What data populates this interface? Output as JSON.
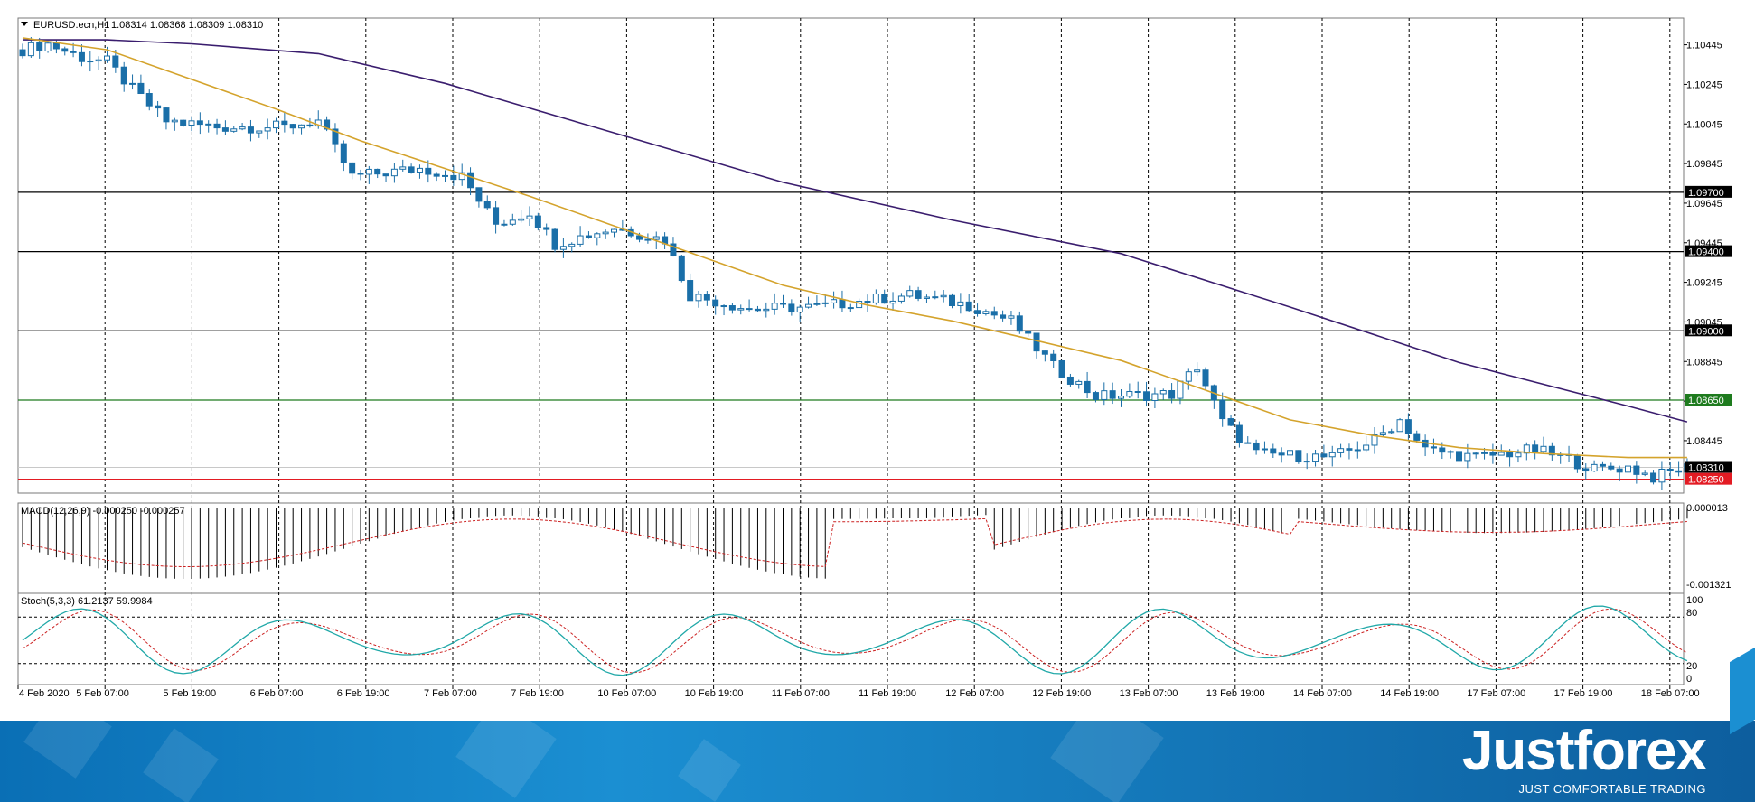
{
  "header": {
    "symbol": "EURUSD.ecn,H1",
    "ohlc": "1.08314 1.08368 1.08309 1.08310"
  },
  "price_axis": {
    "ticks": [
      "1.10445",
      "1.10245",
      "1.10045",
      "1.09845",
      "1.09645",
      "1.09445",
      "1.09245",
      "1.09045",
      "1.08845",
      "1.08645",
      "1.08445"
    ]
  },
  "levels": [
    {
      "label": "1.09700",
      "value": 1.097,
      "color": "#000000"
    },
    {
      "label": "1.09400",
      "value": 1.094,
      "color": "#000000"
    },
    {
      "label": "1.09000",
      "value": 1.09,
      "color": "#000000"
    },
    {
      "label": "1.08650",
      "value": 1.0865,
      "color": "#1e7b1e"
    },
    {
      "label": "1.08310",
      "value": 1.0831,
      "color": "#000000"
    },
    {
      "label": "1.08250",
      "value": 1.0825,
      "color": "#e31b23"
    }
  ],
  "macd": {
    "label": "MACD(12,26,9) -0.000250 -0.000257",
    "axis_labels": [
      "0.000013",
      "-0.001321"
    ]
  },
  "stoch": {
    "label": "Stoch(5,3,3) 61.2137 59.9984",
    "axis_labels": [
      "100",
      "80",
      "20",
      "0"
    ]
  },
  "time_axis": [
    "4 Feb 2020",
    "5 Feb 07:00",
    "5 Feb 19:00",
    "6 Feb 07:00",
    "6 Feb 19:00",
    "7 Feb 07:00",
    "7 Feb 19:00",
    "10 Feb 07:00",
    "10 Feb 19:00",
    "11 Feb 07:00",
    "11 Feb 19:00",
    "12 Feb 07:00",
    "12 Feb 19:00",
    "13 Feb 07:00",
    "13 Feb 19:00",
    "14 Feb 07:00",
    "14 Feb 19:00",
    "17 Feb 07:00",
    "17 Feb 19:00",
    "18 Feb 07:00"
  ],
  "brand": {
    "name": "Justforex",
    "tagline": "JUST COMFORTABLE TRADING"
  },
  "colors": {
    "bull": "#ffffff",
    "bear": "#1a6fa8",
    "ma_fast": "#d4a32c",
    "ma_slow": "#3a1d6e",
    "macd_signal": "#cc2222",
    "stoch_main": "#20a8a8",
    "stoch_signal": "#cc2222"
  },
  "chart_data": {
    "type": "candlestick",
    "instrument": "EURUSD.ecn",
    "timeframe": "H1",
    "y_range": [
      1.0818,
      1.1058
    ],
    "close_path": [
      {
        "t": 0,
        "v": 1.1042
      },
      {
        "t": 3,
        "v": 1.1045
      },
      {
        "t": 7,
        "v": 1.1038
      },
      {
        "t": 10,
        "v": 1.1036
      },
      {
        "t": 13,
        "v": 1.1022
      },
      {
        "t": 17,
        "v": 1.1006
      },
      {
        "t": 23,
        "v": 1.1003
      },
      {
        "t": 31,
        "v": 1.1003
      },
      {
        "t": 35,
        "v": 1.1006
      },
      {
        "t": 39,
        "v": 1.0978
      },
      {
        "t": 47,
        "v": 1.0982
      },
      {
        "t": 52,
        "v": 1.0978
      },
      {
        "t": 56,
        "v": 1.0954
      },
      {
        "t": 60,
        "v": 1.096
      },
      {
        "t": 63,
        "v": 1.0944
      },
      {
        "t": 70,
        "v": 1.0952
      },
      {
        "t": 76,
        "v": 1.0946
      },
      {
        "t": 79,
        "v": 1.0918
      },
      {
        "t": 86,
        "v": 1.0911
      },
      {
        "t": 94,
        "v": 1.0912
      },
      {
        "t": 99,
        "v": 1.0915
      },
      {
        "t": 105,
        "v": 1.0918
      },
      {
        "t": 112,
        "v": 1.0913
      },
      {
        "t": 117,
        "v": 1.0905
      },
      {
        "t": 122,
        "v": 1.0882
      },
      {
        "t": 127,
        "v": 1.0867
      },
      {
        "t": 136,
        "v": 1.0868
      },
      {
        "t": 139,
        "v": 1.0882
      },
      {
        "t": 142,
        "v": 1.0854
      },
      {
        "t": 146,
        "v": 1.0838
      },
      {
        "t": 155,
        "v": 1.0836
      },
      {
        "t": 160,
        "v": 1.0845
      },
      {
        "t": 163,
        "v": 1.0855
      },
      {
        "t": 166,
        "v": 1.084
      },
      {
        "t": 172,
        "v": 1.0836
      },
      {
        "t": 179,
        "v": 1.084
      },
      {
        "t": 183,
        "v": 1.0835
      },
      {
        "t": 186,
        "v": 1.083
      },
      {
        "t": 190,
        "v": 1.0831
      },
      {
        "t": 193,
        "v": 1.0826
      },
      {
        "t": 197,
        "v": 1.0831
      }
    ],
    "ma_fast": [
      [
        0,
        1.1048
      ],
      [
        10,
        1.1042
      ],
      [
        20,
        1.1027
      ],
      [
        30,
        1.1012
      ],
      [
        40,
        1.0996
      ],
      [
        50,
        1.0982
      ],
      [
        60,
        1.0968
      ],
      [
        70,
        1.0953
      ],
      [
        80,
        1.0938
      ],
      [
        90,
        1.0923
      ],
      [
        100,
        1.0913
      ],
      [
        110,
        1.0905
      ],
      [
        120,
        1.0895
      ],
      [
        130,
        1.0885
      ],
      [
        140,
        1.087
      ],
      [
        150,
        1.0855
      ],
      [
        160,
        1.0847
      ],
      [
        170,
        1.0841
      ],
      [
        180,
        1.0838
      ],
      [
        190,
        1.0836
      ],
      [
        197,
        1.0836
      ]
    ],
    "ma_slow": [
      [
        0,
        1.1047
      ],
      [
        10,
        1.1047
      ],
      [
        20,
        1.1045
      ],
      [
        35,
        1.104
      ],
      [
        50,
        1.1025
      ],
      [
        70,
        1.1
      ],
      [
        90,
        1.0975
      ],
      [
        110,
        1.0956
      ],
      [
        130,
        1.0939
      ],
      [
        150,
        1.0912
      ],
      [
        170,
        1.0884
      ],
      [
        190,
        1.0862
      ],
      [
        197,
        1.0854
      ]
    ]
  }
}
